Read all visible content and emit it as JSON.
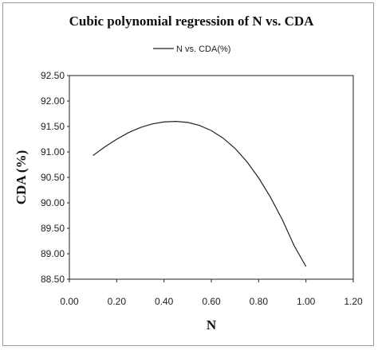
{
  "chart_data": {
    "type": "line",
    "title": "Cubic polynomial regression of  N vs. CDA",
    "xlabel": "N",
    "ylabel": "CDA (%)",
    "xlim": [
      0.0,
      1.2
    ],
    "ylim": [
      88.5,
      92.5
    ],
    "x_ticks": [
      "0.00",
      "0.20",
      "0.40",
      "0.60",
      "0.80",
      "1.00",
      "1.20"
    ],
    "y_ticks": [
      "92.50",
      "92.00",
      "91.50",
      "91.00",
      "90.50",
      "90.00",
      "89.50",
      "89.00",
      "88.50"
    ],
    "legend_position": "top-center",
    "grid": false,
    "series": [
      {
        "name": "N vs. CDA(%)",
        "color": "#222222",
        "x": [
          0.1,
          0.15,
          0.2,
          0.25,
          0.3,
          0.35,
          0.4,
          0.45,
          0.5,
          0.55,
          0.6,
          0.65,
          0.7,
          0.75,
          0.8,
          0.85,
          0.9,
          0.95,
          1.0
        ],
        "y": [
          90.93,
          91.1,
          91.25,
          91.38,
          91.48,
          91.55,
          91.59,
          91.6,
          91.58,
          91.52,
          91.42,
          91.27,
          91.07,
          90.81,
          90.49,
          90.11,
          89.67,
          89.16,
          88.75
        ]
      }
    ]
  }
}
